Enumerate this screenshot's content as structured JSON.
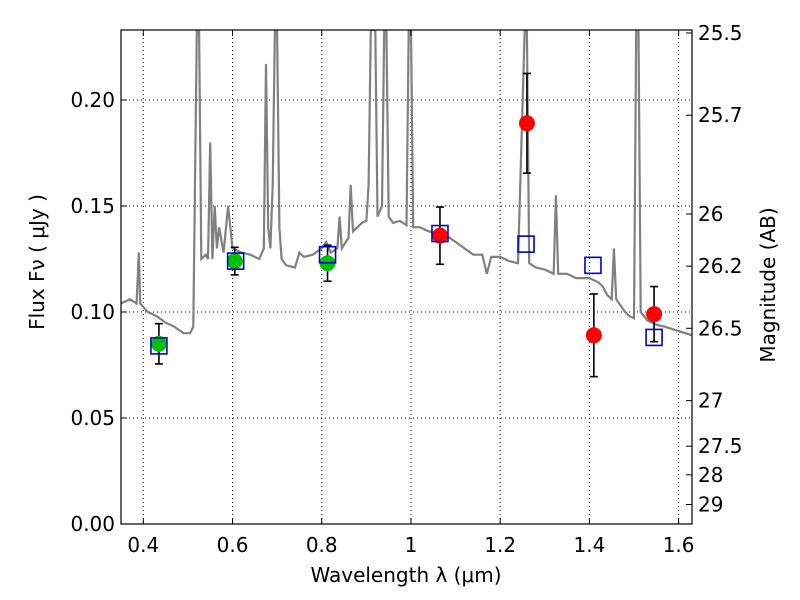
{
  "chart_data": {
    "type": "scatter",
    "xlabel": "Wavelength  λ (μm)",
    "ylabel": "Flux  Fν  ( μJy )",
    "ylabel_right": "Magnitude (AB)",
    "xlim": [
      0.35,
      1.63
    ],
    "ylim": [
      0.0,
      0.233
    ],
    "grid": true,
    "x_ticks": [
      0.4,
      0.6,
      0.8,
      1.0,
      1.2,
      1.4,
      1.6
    ],
    "x_tick_labels": [
      "0.4",
      "0.6",
      "0.8",
      "1",
      "1.2",
      "1.4",
      "1.6"
    ],
    "y_ticks": [
      0.0,
      0.05,
      0.1,
      0.15,
      0.2
    ],
    "y_tick_labels": [
      "0.00",
      "0.05",
      "0.10",
      "0.15",
      "0.20"
    ],
    "mag_ticks": [
      {
        "label": "25.5",
        "flux": 0.2316
      },
      {
        "label": "25.7",
        "flux": 0.1928
      },
      {
        "label": "26",
        "flux": 0.1462
      },
      {
        "label": "26.2",
        "flux": 0.1216
      },
      {
        "label": "26.5",
        "flux": 0.0923
      },
      {
        "label": "27",
        "flux": 0.0582
      },
      {
        "label": "27.5",
        "flux": 0.0367
      },
      {
        "label": "28",
        "flux": 0.0232
      },
      {
        "label": "29",
        "flux": 0.0092
      }
    ],
    "series": [
      {
        "marker": "circle",
        "color": "#00c000",
        "points": [
          {
            "x": 0.435,
            "y": 0.085,
            "err": 0.0095
          },
          {
            "x": 0.605,
            "y": 0.124,
            "err": 0.0065
          },
          {
            "x": 0.813,
            "y": 0.123,
            "err": 0.0085
          }
        ]
      },
      {
        "marker": "circle",
        "color": "#ff0000",
        "points": [
          {
            "x": 1.065,
            "y": 0.136,
            "err": 0.0135
          },
          {
            "x": 1.26,
            "y": 0.189,
            "err": 0.0235
          },
          {
            "x": 1.41,
            "y": 0.089,
            "err": 0.0195
          },
          {
            "x": 1.545,
            "y": 0.099,
            "err": 0.013
          }
        ]
      },
      {
        "marker": "square-open",
        "color": "#0000cc",
        "points": [
          {
            "x": 0.435,
            "y": 0.084
          },
          {
            "x": 0.607,
            "y": 0.124
          },
          {
            "x": 0.813,
            "y": 0.127
          },
          {
            "x": 1.065,
            "y": 0.137
          },
          {
            "x": 1.258,
            "y": 0.132
          },
          {
            "x": 1.408,
            "y": 0.122
          },
          {
            "x": 1.545,
            "y": 0.088
          }
        ]
      }
    ],
    "spectrum": {
      "color": "#808080",
      "points": [
        [
          0.35,
          0.104
        ],
        [
          0.37,
          0.106
        ],
        [
          0.385,
          0.104
        ],
        [
          0.39,
          0.128
        ],
        [
          0.393,
          0.104
        ],
        [
          0.41,
          0.1
        ],
        [
          0.43,
          0.098
        ],
        [
          0.45,
          0.095
        ],
        [
          0.47,
          0.093
        ],
        [
          0.49,
          0.09
        ],
        [
          0.505,
          0.09
        ],
        [
          0.512,
          0.093
        ],
        [
          0.52,
          0.233
        ],
        [
          0.525,
          0.233
        ],
        [
          0.53,
          0.125
        ],
        [
          0.54,
          0.127
        ],
        [
          0.545,
          0.125
        ],
        [
          0.55,
          0.18
        ],
        [
          0.555,
          0.125
        ],
        [
          0.56,
          0.15
        ],
        [
          0.565,
          0.13
        ],
        [
          0.57,
          0.14
        ],
        [
          0.58,
          0.128
        ],
        [
          0.59,
          0.15
        ],
        [
          0.6,
          0.13
        ],
        [
          0.62,
          0.128
        ],
        [
          0.64,
          0.127
        ],
        [
          0.66,
          0.125
        ],
        [
          0.67,
          0.13
        ],
        [
          0.675,
          0.217
        ],
        [
          0.68,
          0.14
        ],
        [
          0.685,
          0.13
        ],
        [
          0.69,
          0.16
        ],
        [
          0.695,
          0.233
        ],
        [
          0.7,
          0.233
        ],
        [
          0.705,
          0.14
        ],
        [
          0.71,
          0.125
        ],
        [
          0.72,
          0.122
        ],
        [
          0.74,
          0.121
        ],
        [
          0.75,
          0.128
        ],
        [
          0.76,
          0.126
        ],
        [
          0.78,
          0.127
        ],
        [
          0.8,
          0.13
        ],
        [
          0.81,
          0.133
        ],
        [
          0.82,
          0.128
        ],
        [
          0.835,
          0.13
        ],
        [
          0.84,
          0.145
        ],
        [
          0.845,
          0.13
        ],
        [
          0.86,
          0.135
        ],
        [
          0.865,
          0.16
        ],
        [
          0.87,
          0.138
        ],
        [
          0.88,
          0.14
        ],
        [
          0.89,
          0.142
        ],
        [
          0.9,
          0.143
        ],
        [
          0.905,
          0.16
        ],
        [
          0.91,
          0.233
        ],
        [
          0.92,
          0.233
        ],
        [
          0.925,
          0.145
        ],
        [
          0.935,
          0.15
        ],
        [
          0.94,
          0.233
        ],
        [
          0.945,
          0.233
        ],
        [
          0.95,
          0.145
        ],
        [
          0.96,
          0.142
        ],
        [
          0.975,
          0.143
        ],
        [
          0.99,
          0.141
        ],
        [
          0.995,
          0.233
        ],
        [
          1.0,
          0.233
        ],
        [
          1.005,
          0.14
        ],
        [
          1.02,
          0.14
        ],
        [
          1.04,
          0.138
        ],
        [
          1.06,
          0.137
        ],
        [
          1.08,
          0.136
        ],
        [
          1.1,
          0.133
        ],
        [
          1.12,
          0.13
        ],
        [
          1.14,
          0.127
        ],
        [
          1.16,
          0.127
        ],
        [
          1.17,
          0.118
        ],
        [
          1.18,
          0.126
        ],
        [
          1.2,
          0.126
        ],
        [
          1.22,
          0.124
        ],
        [
          1.24,
          0.123
        ],
        [
          1.255,
          0.233
        ],
        [
          1.26,
          0.233
        ],
        [
          1.265,
          0.123
        ],
        [
          1.28,
          0.121
        ],
        [
          1.3,
          0.12
        ],
        [
          1.32,
          0.118
        ],
        [
          1.325,
          0.155
        ],
        [
          1.33,
          0.118
        ],
        [
          1.35,
          0.118
        ],
        [
          1.37,
          0.116
        ],
        [
          1.4,
          0.116
        ],
        [
          1.42,
          0.114
        ],
        [
          1.43,
          0.112
        ],
        [
          1.44,
          0.108
        ],
        [
          1.45,
          0.106
        ],
        [
          1.455,
          0.13
        ],
        [
          1.46,
          0.106
        ],
        [
          1.47,
          0.103
        ],
        [
          1.48,
          0.1
        ],
        [
          1.49,
          0.098
        ],
        [
          1.5,
          0.097
        ],
        [
          1.505,
          0.233
        ],
        [
          1.51,
          0.233
        ],
        [
          1.515,
          0.1
        ],
        [
          1.53,
          0.096
        ],
        [
          1.55,
          0.094
        ],
        [
          1.57,
          0.093
        ],
        [
          1.6,
          0.091
        ],
        [
          1.63,
          0.089
        ]
      ]
    }
  }
}
